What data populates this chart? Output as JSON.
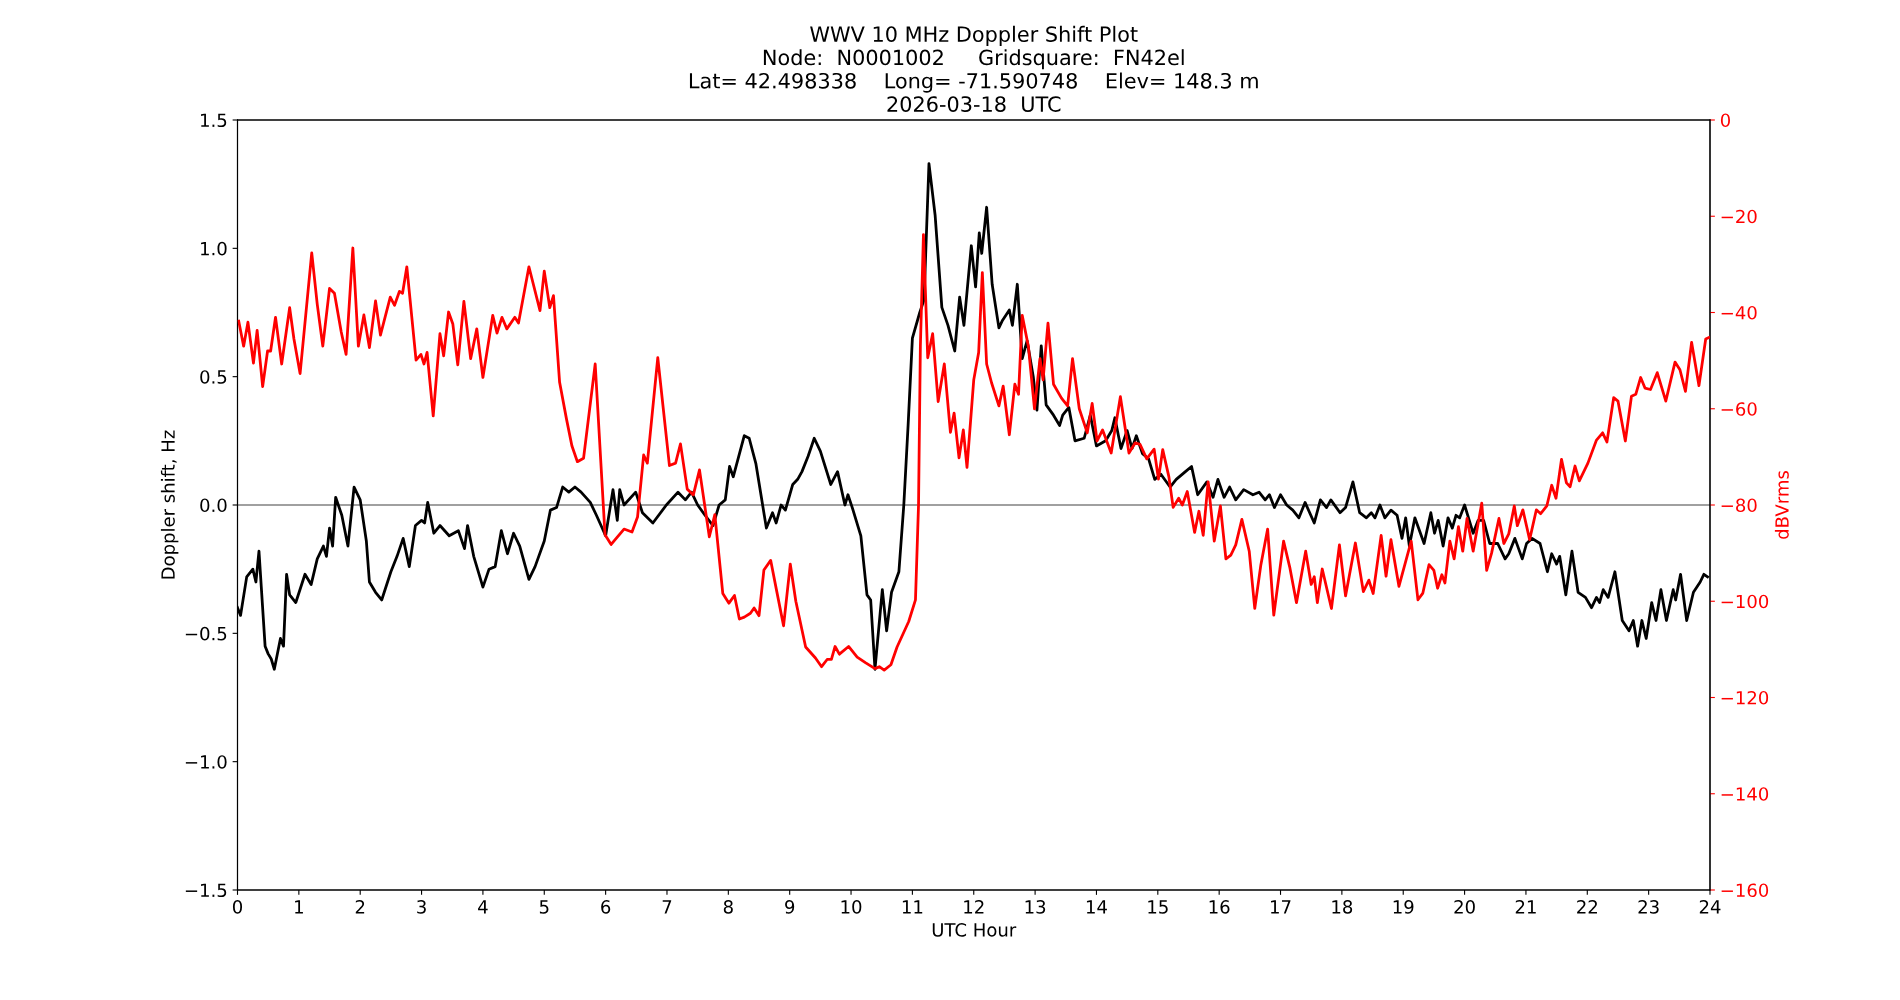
{
  "chart_data": {
    "type": "line",
    "title": "WWV 10 MHz Doppler Shift Plot\nNode:  N0001002     Gridsquare:  FN42el\nLat= 42.498338    Long= -71.590748    Elev= 148.3 m\n2026-03-18  UTC",
    "xlabel": "UTC Hour",
    "ylabel": "Doppler shift, Hz",
    "y2label": "dBVrms",
    "xlim": [
      0,
      24
    ],
    "xticks": [
      0,
      1,
      2,
      3,
      4,
      5,
      6,
      7,
      8,
      9,
      10,
      11,
      12,
      13,
      14,
      15,
      16,
      17,
      18,
      19,
      20,
      21,
      22,
      23,
      24
    ],
    "ylim": [
      -1.5,
      1.5
    ],
    "yticks": [
      {
        "value": -1.5,
        "label": "−1.5"
      },
      {
        "value": -1.0,
        "label": "−1.0"
      },
      {
        "value": -0.5,
        "label": "−0.5"
      },
      {
        "value": 0.0,
        "label": "0.0"
      },
      {
        "value": 0.5,
        "label": "0.5"
      },
      {
        "value": 1.0,
        "label": "1.0"
      },
      {
        "value": 1.5,
        "label": "1.5"
      }
    ],
    "y2lim": [
      -160,
      0
    ],
    "y2ticks": [
      -160,
      -140,
      -120,
      -100,
      -80,
      -60,
      -40,
      -20,
      0
    ],
    "grid": false,
    "marker": "none",
    "line_style": "solid",
    "ref_lines": [
      {
        "axis": "y",
        "value": 0,
        "label": null,
        "color": "#808080"
      }
    ],
    "series": [
      {
        "color": "#000000",
        "axis": "y",
        "x": [
          0.0,
          0.05,
          0.15,
          0.25,
          0.3,
          0.35,
          0.45,
          0.5,
          0.55,
          0.6,
          0.7,
          0.75,
          0.8,
          0.85,
          0.95,
          1.1,
          1.2,
          1.3,
          1.4,
          1.45,
          1.5,
          1.55,
          1.6,
          1.7,
          1.8,
          1.9,
          2.0,
          2.1,
          2.15,
          2.25,
          2.35,
          2.5,
          2.6,
          2.7,
          2.8,
          2.9,
          3.0,
          3.05,
          3.1,
          3.2,
          3.3,
          3.45,
          3.6,
          3.7,
          3.75,
          3.85,
          4.0,
          4.1,
          4.2,
          4.3,
          4.4,
          4.5,
          4.6,
          4.75,
          4.85,
          5.0,
          5.1,
          5.2,
          5.3,
          5.4,
          5.5,
          5.6,
          5.75,
          5.85,
          6.0,
          6.12,
          6.19,
          6.23,
          6.3,
          6.49,
          6.6,
          6.77,
          6.99,
          7.18,
          7.3,
          7.4,
          7.5,
          7.62,
          7.75,
          7.85,
          7.95,
          8.02,
          8.08,
          8.26,
          8.34,
          8.45,
          8.62,
          8.72,
          8.78,
          8.86,
          8.93,
          9.05,
          9.13,
          9.2,
          9.3,
          9.4,
          9.5,
          9.67,
          9.78,
          9.9,
          9.95,
          10.02,
          10.16,
          10.26,
          10.32,
          10.39,
          10.51,
          10.58,
          10.66,
          10.78,
          10.86,
          10.93,
          11.0,
          11.12,
          11.19,
          11.27,
          11.37,
          11.48,
          11.58,
          11.69,
          11.77,
          11.84,
          11.96,
          12.03,
          12.09,
          12.13,
          12.21,
          12.3,
          12.41,
          12.47,
          12.58,
          12.63,
          12.71,
          12.79,
          12.87,
          12.97,
          13.03,
          13.1,
          13.18,
          13.3,
          13.4,
          13.45,
          13.55,
          13.65,
          13.8,
          13.9,
          14.0,
          14.15,
          14.25,
          14.3,
          14.4,
          14.5,
          14.58,
          14.65,
          14.75,
          14.85,
          14.95,
          15.05,
          15.2,
          15.3,
          15.45,
          15.55,
          15.65,
          15.8,
          15.9,
          15.98,
          16.08,
          16.17,
          16.27,
          16.4,
          16.55,
          16.65,
          16.75,
          16.82,
          16.9,
          17.0,
          17.1,
          17.2,
          17.3,
          17.4,
          17.55,
          17.65,
          17.75,
          17.82,
          17.97,
          18.06,
          18.18,
          18.29,
          18.4,
          18.48,
          18.54,
          18.62,
          18.7,
          18.8,
          18.9,
          18.98,
          19.04,
          19.1,
          19.19,
          19.34,
          19.45,
          19.51,
          19.57,
          19.65,
          19.73,
          19.8,
          19.86,
          19.92,
          20.0,
          20.14,
          20.22,
          20.31,
          20.41,
          20.54,
          20.66,
          20.72,
          20.82,
          20.94,
          21.01,
          21.1,
          21.23,
          21.35,
          21.42,
          21.5,
          21.55,
          21.65,
          21.75,
          21.85,
          21.97,
          22.07,
          22.15,
          22.2,
          22.26,
          22.34,
          22.45,
          22.57,
          22.68,
          22.75,
          22.82,
          22.89,
          22.96,
          23.05,
          23.12,
          23.2,
          23.29,
          23.4,
          23.44,
          23.52,
          23.62,
          23.73,
          23.84,
          23.9,
          23.96
        ],
        "values": [
          -0.4,
          -0.43,
          -0.28,
          -0.25,
          -0.3,
          -0.18,
          -0.55,
          -0.58,
          -0.6,
          -0.64,
          -0.52,
          -0.55,
          -0.27,
          -0.35,
          -0.38,
          -0.27,
          -0.31,
          -0.21,
          -0.16,
          -0.2,
          -0.09,
          -0.16,
          0.03,
          -0.04,
          -0.16,
          0.07,
          0.02,
          -0.14,
          -0.3,
          -0.34,
          -0.37,
          -0.26,
          -0.2,
          -0.13,
          -0.24,
          -0.08,
          -0.06,
          -0.07,
          0.01,
          -0.11,
          -0.08,
          -0.12,
          -0.1,
          -0.17,
          -0.08,
          -0.2,
          -0.32,
          -0.25,
          -0.24,
          -0.1,
          -0.19,
          -0.11,
          -0.16,
          -0.29,
          -0.24,
          -0.14,
          -0.02,
          -0.01,
          0.07,
          0.05,
          0.07,
          0.05,
          0.01,
          -0.04,
          -0.12,
          0.06,
          -0.06,
          0.06,
          0.0,
          0.05,
          -0.03,
          -0.07,
          0.0,
          0.05,
          0.02,
          0.05,
          0.0,
          -0.04,
          -0.08,
          0.0,
          0.02,
          0.15,
          0.11,
          0.27,
          0.26,
          0.16,
          -0.09,
          -0.03,
          -0.07,
          0.0,
          -0.02,
          0.08,
          0.1,
          0.13,
          0.19,
          0.26,
          0.21,
          0.08,
          0.13,
          0.0,
          0.04,
          -0.01,
          -0.12,
          -0.35,
          -0.37,
          -0.64,
          -0.33,
          -0.49,
          -0.34,
          -0.26,
          0.0,
          0.31,
          0.65,
          0.75,
          0.8,
          1.33,
          1.13,
          0.77,
          0.7,
          0.6,
          0.81,
          0.7,
          1.01,
          0.85,
          1.06,
          0.98,
          1.16,
          0.86,
          0.69,
          0.72,
          0.76,
          0.7,
          0.86,
          0.57,
          0.64,
          0.5,
          0.37,
          0.62,
          0.39,
          0.35,
          0.31,
          0.35,
          0.38,
          0.25,
          0.26,
          0.35,
          0.23,
          0.25,
          0.29,
          0.34,
          0.22,
          0.29,
          0.22,
          0.27,
          0.2,
          0.18,
          0.1,
          0.12,
          0.07,
          0.1,
          0.13,
          0.15,
          0.04,
          0.09,
          0.03,
          0.1,
          0.03,
          0.07,
          0.02,
          0.06,
          0.04,
          0.05,
          0.02,
          0.04,
          -0.01,
          0.04,
          0.0,
          -0.02,
          -0.05,
          0.01,
          -0.07,
          0.02,
          -0.01,
          0.02,
          -0.03,
          -0.01,
          0.09,
          -0.03,
          -0.05,
          -0.03,
          -0.05,
          0.0,
          -0.05,
          -0.02,
          -0.04,
          -0.13,
          -0.05,
          -0.16,
          -0.05,
          -0.15,
          -0.03,
          -0.11,
          -0.06,
          -0.16,
          -0.05,
          -0.09,
          -0.04,
          -0.05,
          0.0,
          -0.11,
          -0.06,
          -0.06,
          -0.15,
          -0.15,
          -0.21,
          -0.19,
          -0.13,
          -0.21,
          -0.15,
          -0.13,
          -0.15,
          -0.26,
          -0.19,
          -0.23,
          -0.2,
          -0.35,
          -0.18,
          -0.34,
          -0.36,
          -0.4,
          -0.36,
          -0.38,
          -0.33,
          -0.36,
          -0.26,
          -0.45,
          -0.49,
          -0.45,
          -0.55,
          -0.45,
          -0.52,
          -0.38,
          -0.45,
          -0.33,
          -0.45,
          -0.33,
          -0.37,
          -0.27,
          -0.45,
          -0.34,
          -0.3,
          -0.27,
          -0.28
        ]
      },
      {
        "color": "#ff0000",
        "axis": "y2",
        "x": [
          0.02,
          0.1,
          0.17,
          0.26,
          0.32,
          0.41,
          0.49,
          0.54,
          0.62,
          0.72,
          0.85,
          0.92,
          1.02,
          1.21,
          1.3,
          1.39,
          1.5,
          1.58,
          1.69,
          1.77,
          1.88,
          1.97,
          2.06,
          2.15,
          2.25,
          2.33,
          2.49,
          2.56,
          2.64,
          2.69,
          2.76,
          2.91,
          2.99,
          3.04,
          3.09,
          3.19,
          3.3,
          3.36,
          3.44,
          3.51,
          3.59,
          3.69,
          3.8,
          3.9,
          4.0,
          4.16,
          4.23,
          4.31,
          4.39,
          4.52,
          4.58,
          4.75,
          4.93,
          5.0,
          5.09,
          5.15,
          5.25,
          5.36,
          5.45,
          5.54,
          5.64,
          5.83,
          5.99,
          6.09,
          6.2,
          6.3,
          6.43,
          6.52,
          6.62,
          6.68,
          6.85,
          7.04,
          7.14,
          7.22,
          7.33,
          7.43,
          7.53,
          7.69,
          7.78,
          7.91,
          8.01,
          8.1,
          8.18,
          8.26,
          8.36,
          8.42,
          8.5,
          8.58,
          8.69,
          8.79,
          8.9,
          9.01,
          9.1,
          9.26,
          9.42,
          9.52,
          9.61,
          9.68,
          9.74,
          9.81,
          9.96,
          10.1,
          10.24,
          10.39,
          10.46,
          10.54,
          10.65,
          10.75,
          10.94,
          11.05,
          11.1,
          11.13,
          11.18,
          11.25,
          11.33,
          11.42,
          11.52,
          11.62,
          11.68,
          11.76,
          11.83,
          11.89,
          12.0,
          12.08,
          12.14,
          12.21,
          12.29,
          12.41,
          12.48,
          12.58,
          12.67,
          12.73,
          12.79,
          12.89,
          12.99,
          13.08,
          13.13,
          13.21,
          13.3,
          13.43,
          13.53,
          13.61,
          13.72,
          13.85,
          13.93,
          14.01,
          14.1,
          14.24,
          14.39,
          14.53,
          14.63,
          14.71,
          14.82,
          14.94,
          15.01,
          15.08,
          15.18,
          15.25,
          15.34,
          15.4,
          15.48,
          15.6,
          15.67,
          15.74,
          15.82,
          15.92,
          16.02,
          16.11,
          16.19,
          16.27,
          16.37,
          16.49,
          16.58,
          16.68,
          16.79,
          16.89,
          17.05,
          17.15,
          17.26,
          17.41,
          17.5,
          17.55,
          17.6,
          17.68,
          17.83,
          17.96,
          18.06,
          18.22,
          18.35,
          18.44,
          18.51,
          18.64,
          18.72,
          18.8,
          18.93,
          19.13,
          19.24,
          19.32,
          19.42,
          19.5,
          19.56,
          19.63,
          19.68,
          19.76,
          19.83,
          19.9,
          19.97,
          20.04,
          20.14,
          20.28,
          20.36,
          20.44,
          20.56,
          20.64,
          20.72,
          20.81,
          20.86,
          20.95,
          21.06,
          21.17,
          21.24,
          21.34,
          21.42,
          21.49,
          21.58,
          21.66,
          21.72,
          21.8,
          21.87,
          22.01,
          22.15,
          22.25,
          22.32,
          22.43,
          22.5,
          22.62,
          22.72,
          22.79,
          22.87,
          22.94,
          23.03,
          23.14,
          23.28,
          23.43,
          23.51,
          23.6,
          23.7,
          23.82,
          23.93,
          23.98
        ],
        "values": [
          -41.8,
          -47,
          -42,
          -50.5,
          -43.7,
          -55.4,
          -48,
          -48,
          -41,
          -50.7,
          -39,
          -45.5,
          -52.7,
          -27.6,
          -38.3,
          -47,
          -35,
          -36,
          -44,
          -48.7,
          -26.6,
          -47,
          -40.5,
          -47.3,
          -37.6,
          -44.7,
          -36.8,
          -38.5,
          -35.6,
          -36,
          -30.5,
          -49.9,
          -48.7,
          -50.7,
          -48.3,
          -61.5,
          -44.4,
          -49,
          -39.9,
          -42.4,
          -50.9,
          -37.7,
          -49.6,
          -43.4,
          -53.5,
          -40.6,
          -44.3,
          -41,
          -43.4,
          -41,
          -42.2,
          -30.5,
          -39.6,
          -31.4,
          -39,
          -36.5,
          -54.5,
          -62,
          -67.7,
          -71,
          -70.3,
          -50.7,
          -86.2,
          -88.2,
          -86.5,
          -85,
          -85.6,
          -82.5,
          -69.6,
          -71.3,
          -49.4,
          -71.8,
          -71.3,
          -67.3,
          -76.7,
          -77.9,
          -72.7,
          -86.6,
          -82,
          -98.4,
          -100.4,
          -98.8,
          -103.7,
          -103.3,
          -102.5,
          -101.4,
          -103,
          -93.5,
          -91.5,
          -98,
          -105.1,
          -92.3,
          -100,
          -109.5,
          -111.8,
          -113.6,
          -112.1,
          -112.1,
          -109.4,
          -111,
          -109.4,
          -111.6,
          -112.8,
          -114,
          -113.6,
          -114.3,
          -113.2,
          -109.5,
          -104.2,
          -99.7,
          -80,
          -47,
          -23.8,
          -49.4,
          -44.4,
          -58.5,
          -50.7,
          -64.9,
          -60.9,
          -70.2,
          -64.4,
          -72.2,
          -54,
          -48.3,
          -31.7,
          -50.7,
          -54.6,
          -59.4,
          -55.3,
          -65.4,
          -54.9,
          -57,
          -40.6,
          -47,
          -60,
          -49.6,
          -54,
          -42.2,
          -54.9,
          -57.8,
          -59.4,
          -49.6,
          -60,
          -65,
          -58.9,
          -66.7,
          -64.4,
          -69.2,
          -57.5,
          -69.2,
          -67.1,
          -67.4,
          -70.4,
          -68.4,
          -74.6,
          -68.5,
          -74.1,
          -80.5,
          -78.6,
          -80,
          -77.2,
          -85.7,
          -81.3,
          -86.3,
          -75.2,
          -87.5,
          -80.2,
          -91.2,
          -90.4,
          -88.3,
          -83,
          -89.6,
          -101.5,
          -92.4,
          -85,
          -102.9,
          -87.5,
          -92.9,
          -100.3,
          -89.6,
          -96.5,
          -94.9,
          -100.3,
          -93.3,
          -101.5,
          -88.3,
          -98.9,
          -87.9,
          -98,
          -95.6,
          -98.4,
          -86.3,
          -94.8,
          -87.2,
          -96.9,
          -87.5,
          -99.7,
          -98.3,
          -92.4,
          -93.6,
          -97.3,
          -94.5,
          -96.2,
          -87.5,
          -91.2,
          -84.5,
          -89.6,
          -82.8,
          -89.6,
          -79.6,
          -93.6,
          -90,
          -82.8,
          -88,
          -86,
          -80.2,
          -84.3,
          -81,
          -87.2,
          -81,
          -81.8,
          -80.2,
          -75.9,
          -78.6,
          -70.5,
          -75.4,
          -76.2,
          -71.9,
          -75,
          -71.3,
          -66.5,
          -65,
          -66.9,
          -57.7,
          -58.4,
          -66.7,
          -57.4,
          -57,
          -53.5,
          -55.7,
          -56,
          -52.5,
          -58.4,
          -50.3,
          -51.9,
          -56.4,
          -46.2,
          -55.2,
          -45.5,
          -45.2
        ]
      }
    ]
  }
}
